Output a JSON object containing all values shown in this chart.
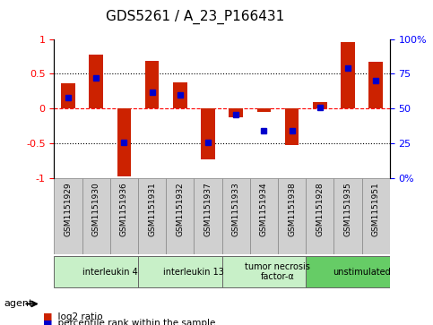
{
  "title": "GDS5261 / A_23_P166431",
  "samples": [
    "GSM1151929",
    "GSM1151930",
    "GSM1151936",
    "GSM1151931",
    "GSM1151932",
    "GSM1151937",
    "GSM1151933",
    "GSM1151934",
    "GSM1151938",
    "GSM1151928",
    "GSM1151935",
    "GSM1151951"
  ],
  "log2_ratio": [
    0.37,
    0.77,
    -0.97,
    0.68,
    0.38,
    -0.73,
    -0.12,
    -0.05,
    -0.52,
    0.1,
    0.95,
    0.67
  ],
  "percentile": [
    58,
    72,
    26,
    62,
    60,
    26,
    46,
    34,
    34,
    51,
    79,
    70
  ],
  "groups": [
    {
      "label": "interleukin 4",
      "start": 0,
      "end": 3,
      "color": "#c8f0c8"
    },
    {
      "label": "interleukin 13",
      "start": 3,
      "end": 6,
      "color": "#c8f0c8"
    },
    {
      "label": "tumor necrosis\nfactor-α",
      "start": 6,
      "end": 9,
      "color": "#c8f0c8"
    },
    {
      "label": "unstimulated",
      "start": 9,
      "end": 12,
      "color": "#66cc66"
    }
  ],
  "bar_color": "#cc2200",
  "dot_color": "#0000cc",
  "ylim_left": [
    -1,
    1
  ],
  "ylim_right": [
    0,
    100
  ],
  "yticks_left": [
    -1,
    -0.5,
    0,
    0.5,
    1
  ],
  "yticks_right": [
    0,
    25,
    50,
    75,
    100
  ],
  "ytick_labels_left": [
    "-1",
    "-0.5",
    "0",
    "0.5",
    "1"
  ],
  "ytick_labels_right": [
    "0%",
    "25",
    "50",
    "75",
    "100%"
  ],
  "hline_y": [
    0.5,
    0,
    -0.5
  ],
  "hline_styles": [
    "dotted",
    "dashed",
    "dotted"
  ],
  "hline_colors": [
    "black",
    "red",
    "black"
  ],
  "legend_items": [
    {
      "color": "#cc2200",
      "marker": "s",
      "label": "log2 ratio"
    },
    {
      "color": "#0000cc",
      "marker": "s",
      "label": "percentile rank within the sample"
    }
  ],
  "agent_label": "agent",
  "bg_color": "#ffffff",
  "plot_bg_color": "#ffffff",
  "grid_color": "#aaaaaa",
  "sample_box_color": "#d0d0d0",
  "title_fontsize": 11,
  "tick_fontsize": 8,
  "label_fontsize": 8.5
}
